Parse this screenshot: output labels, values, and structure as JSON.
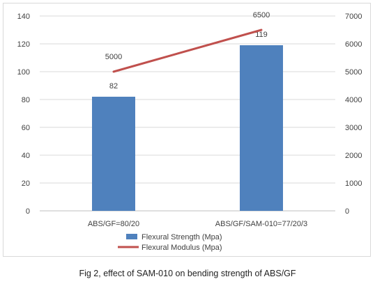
{
  "caption": "Fig 2, effect of SAM-010 on bending strength of ABS/GF",
  "chart_data": {
    "type": "bar",
    "categories": [
      "ABS/GF=80/20",
      "ABS/GF/SAM-010=77/20/3"
    ],
    "series": [
      {
        "name": "Flexural Strength (Mpa)",
        "type": "bar",
        "axis": "left",
        "values": [
          82,
          119
        ],
        "data_labels": [
          "82",
          "119"
        ],
        "color": "#4f81bd"
      },
      {
        "name": "Flexural Modulus (Mpa)",
        "type": "line",
        "axis": "right",
        "values": [
          5000,
          6500
        ],
        "data_labels": [
          "5000",
          "6500"
        ],
        "color": "#c0504d"
      }
    ],
    "y_left": {
      "min": 0,
      "max": 140,
      "ticks": [
        0,
        20,
        40,
        60,
        80,
        100,
        120,
        140
      ]
    },
    "y_right": {
      "min": 0,
      "max": 7000,
      "ticks": [
        0,
        1000,
        2000,
        3000,
        4000,
        5000,
        6000,
        7000
      ]
    },
    "grid": true,
    "legend_position": "bottom"
  }
}
